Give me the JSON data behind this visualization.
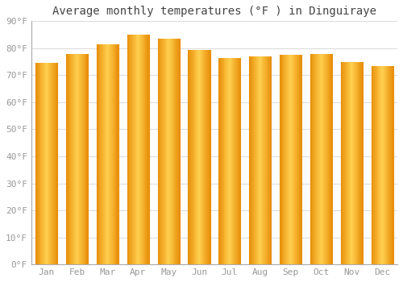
{
  "title": "Average monthly temperatures (°F ) in Dinguiraye",
  "months": [
    "Jan",
    "Feb",
    "Mar",
    "Apr",
    "May",
    "Jun",
    "Jul",
    "Aug",
    "Sep",
    "Oct",
    "Nov",
    "Dec"
  ],
  "values": [
    74.5,
    78.0,
    81.5,
    85.0,
    83.5,
    79.5,
    76.5,
    77.0,
    77.5,
    78.0,
    75.0,
    73.5
  ],
  "bar_color_main": "#FFC020",
  "bar_color_light": "#FFD870",
  "bar_color_edge": "#E8900A",
  "background_color": "#FFFFFF",
  "plot_bg_color": "#FFFFFF",
  "grid_color": "#DDDDDD",
  "border_color": "#AAAAAA",
  "ylim": [
    0,
    90
  ],
  "ytick_step": 10,
  "title_fontsize": 10,
  "tick_fontsize": 8,
  "font_color": "#999999",
  "title_color": "#444444"
}
